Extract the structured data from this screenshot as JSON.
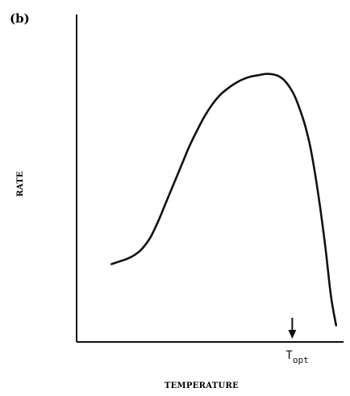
{
  "panel_label": "(b)",
  "chart_data": {
    "type": "line",
    "title": "",
    "xlabel": "TEMPERATURE",
    "ylabel": "RATE",
    "xlim": [
      0,
      100
    ],
    "ylim": [
      0,
      100
    ],
    "grid": false,
    "legend": "none",
    "tick_labels": "none",
    "series": [
      {
        "x": [
          12,
          15,
          18,
          21,
          24,
          27,
          30,
          33,
          36,
          39,
          42,
          45,
          48,
          51,
          54,
          57,
          60,
          63,
          66,
          69,
          72,
          75,
          77,
          79,
          81,
          83,
          85,
          87,
          89,
          91,
          93,
          95,
          97,
          99
        ],
        "y": [
          25,
          26,
          27,
          28.5,
          31,
          35,
          41,
          48,
          55,
          62,
          69,
          75,
          80.5,
          85,
          88.5,
          91,
          93,
          94.5,
          95.5,
          96,
          96.5,
          96.2,
          95.5,
          94,
          91.5,
          88,
          83,
          77,
          69,
          58,
          45,
          30,
          13,
          2
        ]
      }
    ],
    "annotations": [
      {
        "type": "arrow",
        "x": 82,
        "label": "T",
        "label_sub": "opt"
      }
    ]
  },
  "colors": {
    "ink": "#111111",
    "background": "#ffffff"
  }
}
